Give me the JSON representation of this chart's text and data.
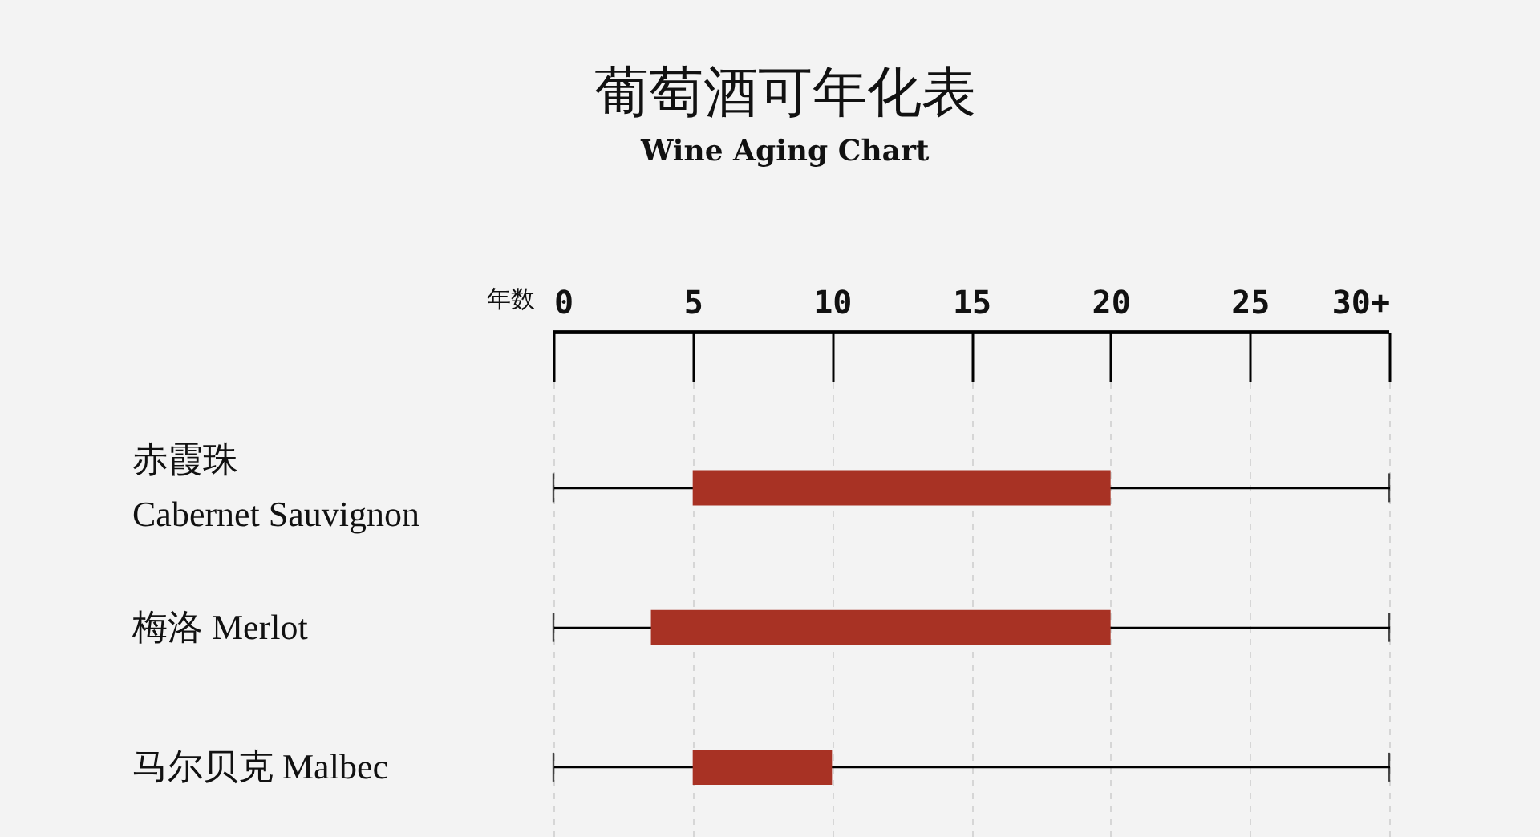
{
  "chart_data": {
    "type": "bar",
    "orientation": "horizontal",
    "title": "葡萄酒可年化表",
    "subtitle": "Wine Aging Chart",
    "xlabel": "年数",
    "categories": [
      "赤霞珠\nCabernet Sauvignon",
      "梅洛 Merlot",
      "马尔贝克 Malbec"
    ],
    "base": [
      5,
      3.5,
      5
    ],
    "values": [
      15,
      16.5,
      5
    ],
    "color": "#a83224",
    "xlim": [
      0,
      30
    ],
    "xticks": [
      0,
      5,
      10,
      15,
      20,
      25,
      {
        "value": 30,
        "label": "30+"
      }
    ],
    "grid": true
  }
}
